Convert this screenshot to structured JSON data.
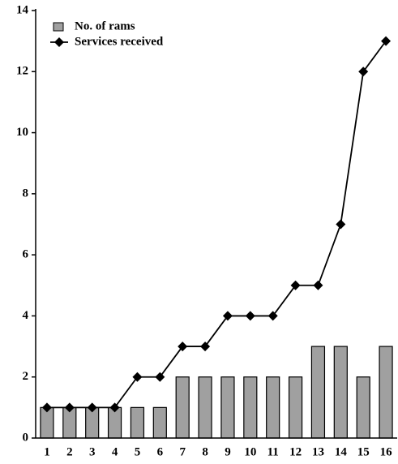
{
  "chart_data": {
    "type": "bar",
    "categories": [
      "1",
      "2",
      "3",
      "4",
      "5",
      "6",
      "7",
      "8",
      "9",
      "10",
      "11",
      "12",
      "13",
      "14",
      "15",
      "16"
    ],
    "series": [
      {
        "name": "No. of rams",
        "type": "bar",
        "color": "#a0a0a0",
        "values": [
          1,
          1,
          1,
          1,
          1,
          1,
          2,
          2,
          2,
          2,
          2,
          2,
          3,
          3,
          2,
          3
        ]
      },
      {
        "name": "Services received",
        "type": "line",
        "color": "#000000",
        "values": [
          1,
          1,
          1,
          1,
          2,
          2,
          3,
          3,
          4,
          4,
          4,
          5,
          5,
          7,
          12,
          13
        ]
      }
    ],
    "ylim": [
      0,
      14
    ],
    "yticks": [
      0,
      2,
      4,
      6,
      8,
      10,
      12,
      14
    ],
    "grid": false,
    "legend": "top-left"
  }
}
